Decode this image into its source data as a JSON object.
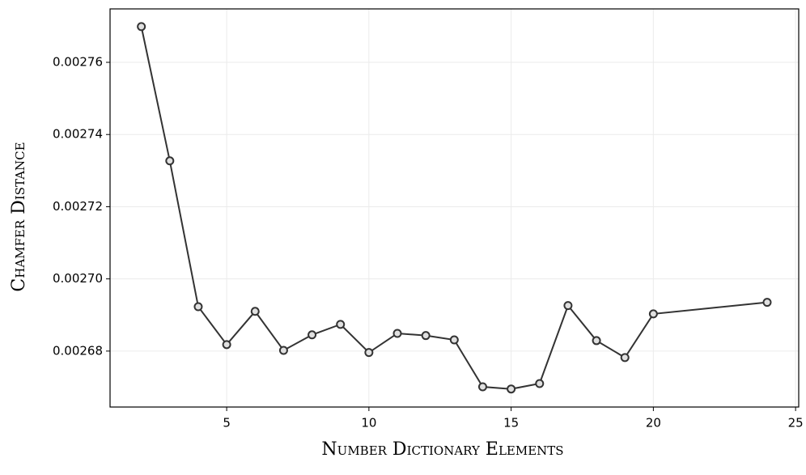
{
  "chart_data": {
    "type": "line",
    "xlabel": "Number Dictionary Elements",
    "ylabel": "Chamfer Distance",
    "x": [
      2,
      3,
      4,
      5,
      6,
      7,
      8,
      9,
      10,
      11,
      12,
      13,
      14,
      15,
      16,
      17,
      18,
      19,
      20,
      24
    ],
    "series": [
      {
        "color": "#333333",
        "marker_fill": "#e0e0e0",
        "values": [
          0.0027699,
          0.0027327,
          0.0026923,
          0.0026818,
          0.002691,
          0.0026802,
          0.0026845,
          0.0026874,
          0.0026796,
          0.0026849,
          0.0026843,
          0.0026831,
          0.0026701,
          0.0026695,
          0.002671,
          0.0026926,
          0.0026829,
          0.0026782,
          0.0026903,
          0.0026935
        ]
      }
    ],
    "xlim": [
      0.9,
      25.11
    ],
    "xticks": [
      5,
      10,
      15,
      20,
      25
    ],
    "ylim": [
      0.0026645,
      0.0027748
    ],
    "yticks": [
      0.00268,
      {
        "value": 0.0027,
        "label": "0.00270"
      },
      0.00272,
      0.00274,
      0.00276
    ],
    "grid": true
  }
}
